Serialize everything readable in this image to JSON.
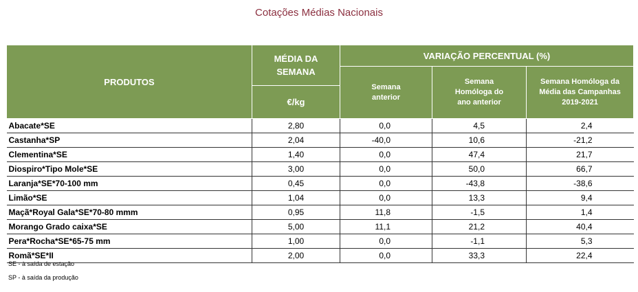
{
  "title": "Cotações Médias Nacionais",
  "headers": {
    "produtos": "PRODUTOS",
    "media": "MÉDIA DA SEMANA",
    "unit": "€/kg",
    "variacao": "VARIAÇÃO PERCENTUAL (%)",
    "semana_anterior": "Semana anterior",
    "semana_homologa_ano": "Semana Homóloga do ano anterior",
    "semana_homologa_media": "Semana Homóloga da Média das Campanhas 2019-2021"
  },
  "rows": [
    {
      "produto": "Abacate*SE",
      "media": "2,80",
      "anterior": "0,0",
      "homologa": "4,5",
      "campanhas": "2,4"
    },
    {
      "produto": "Castanha*SP",
      "media": "2,04",
      "anterior": "-40,0",
      "homologa": "10,6",
      "campanhas": "-21,2"
    },
    {
      "produto": "Clementina*SE",
      "media": "1,40",
      "anterior": "0,0",
      "homologa": "47,4",
      "campanhas": "21,7"
    },
    {
      "produto": "Diospiro*Tipo Mole*SE",
      "media": "3,00",
      "anterior": "0,0",
      "homologa": "50,0",
      "campanhas": "66,7"
    },
    {
      "produto": "Laranja*SE*70-100 mm",
      "media": "0,45",
      "anterior": "0,0",
      "homologa": "-43,8",
      "campanhas": "-38,6"
    },
    {
      "produto": "Limão*SE",
      "media": "1,04",
      "anterior": "0,0",
      "homologa": "13,3",
      "campanhas": "9,4"
    },
    {
      "produto": "Maçã*Royal Gala*SE*70-80 mmm",
      "media": "0,95",
      "anterior": "11,8",
      "homologa": "-1,5",
      "campanhas": "1,4"
    },
    {
      "produto": "Morango Grado caixa*SE",
      "media": "5,00",
      "anterior": "11,1",
      "homologa": "21,2",
      "campanhas": "40,4"
    },
    {
      "produto": "Pera*Rocha*SE*65-75 mm",
      "media": "1,00",
      "anterior": "0,0",
      "homologa": "-1,1",
      "campanhas": "5,3"
    },
    {
      "produto": "Romã*SE*II",
      "media": "2,00",
      "anterior": "0,0",
      "homologa": "33,3",
      "campanhas": "22,4"
    }
  ],
  "notes": {
    "se": "SE - à saída de estação",
    "sp": "SP - à saída da produção"
  }
}
